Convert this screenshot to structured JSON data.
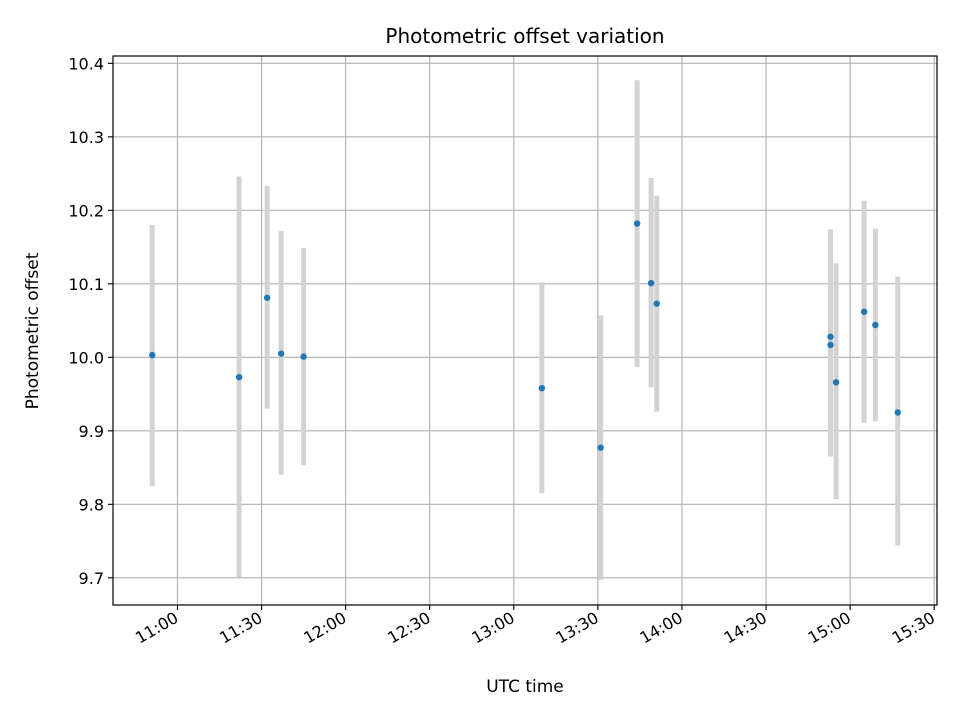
{
  "chart_data": {
    "type": "scatter",
    "title": "Photometric offset variation",
    "xlabel": "UTC time",
    "ylabel": "Photometric offset",
    "x_unit": "UTC HH:MM",
    "xlim": [
      "10:37",
      "15:31"
    ],
    "ylim": [
      9.663,
      10.41
    ],
    "xticks": [
      "11:00",
      "11:30",
      "12:00",
      "12:30",
      "13:00",
      "13:30",
      "14:00",
      "14:30",
      "15:00",
      "15:30"
    ],
    "yticks": [
      9.7,
      9.8,
      9.9,
      10.0,
      10.1,
      10.2,
      10.3,
      10.4
    ],
    "ytick_labels": [
      "9.7",
      "9.8",
      "9.9",
      "10.0",
      "10.1",
      "10.2",
      "10.3",
      "10.4"
    ],
    "grid": true,
    "point_color": "#1f77b4",
    "errorbar_color": "#d3d3d3",
    "points": [
      {
        "t": "10:51",
        "y": 10.003,
        "err_low": 9.825,
        "err_high": 10.18
      },
      {
        "t": "11:22",
        "y": 9.973,
        "err_low": 9.701,
        "err_high": 10.246
      },
      {
        "t": "11:32",
        "y": 10.081,
        "err_low": 9.93,
        "err_high": 10.233
      },
      {
        "t": "11:37",
        "y": 10.005,
        "err_low": 9.84,
        "err_high": 10.172
      },
      {
        "t": "11:45",
        "y": 10.001,
        "err_low": 9.853,
        "err_high": 10.149
      },
      {
        "t": "13:10",
        "y": 9.958,
        "err_low": 9.815,
        "err_high": 10.102
      },
      {
        "t": "13:31",
        "y": 9.877,
        "err_low": 9.697,
        "err_high": 10.057
      },
      {
        "t": "13:44",
        "y": 10.182,
        "err_low": 9.987,
        "err_high": 10.377
      },
      {
        "t": "13:49",
        "y": 10.101,
        "err_low": 9.959,
        "err_high": 10.244
      },
      {
        "t": "13:51",
        "y": 10.073,
        "err_low": 9.926,
        "err_high": 10.22
      },
      {
        "t": "14:53",
        "y": 10.017,
        "err_low": 9.865,
        "err_high": 10.174
      },
      {
        "t": "14:53",
        "y": 10.028,
        "err_low": 9.88,
        "err_high": 10.172
      },
      {
        "t": "14:55",
        "y": 9.966,
        "err_low": 9.807,
        "err_high": 10.128
      },
      {
        "t": "15:05",
        "y": 10.062,
        "err_low": 9.911,
        "err_high": 10.213
      },
      {
        "t": "15:09",
        "y": 10.044,
        "err_low": 9.913,
        "err_high": 10.175
      },
      {
        "t": "15:17",
        "y": 9.925,
        "err_low": 9.744,
        "err_high": 10.11
      }
    ]
  }
}
